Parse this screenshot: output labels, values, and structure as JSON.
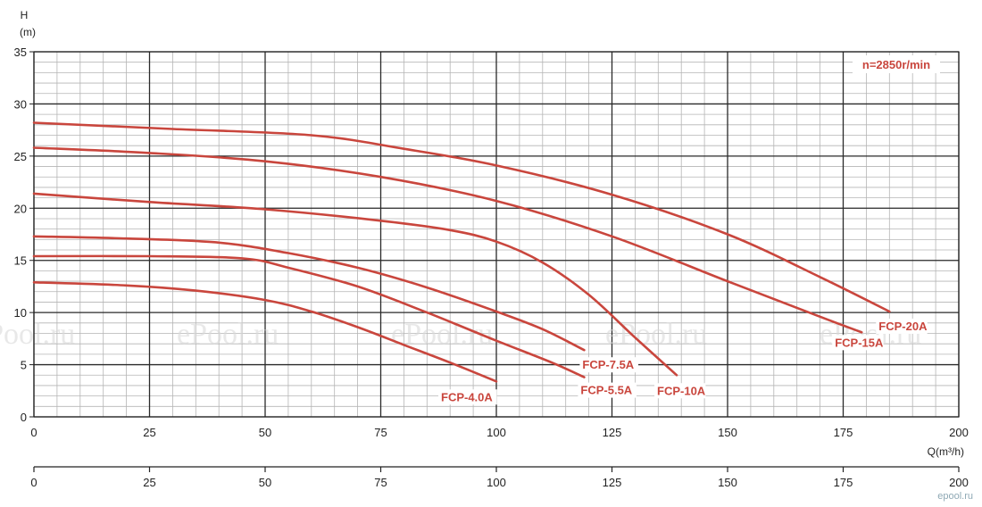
{
  "chart_data": {
    "type": "line",
    "ylabel_lines": [
      "H",
      "(m)"
    ],
    "xlabel": "Q(m³/h)",
    "annotation": "n=2850r/min",
    "xlim": [
      0,
      200
    ],
    "ylim": [
      0,
      35
    ],
    "x_ticks": [
      0,
      25,
      50,
      75,
      100,
      125,
      150,
      175,
      200
    ],
    "y_ticks": [
      0,
      5,
      10,
      15,
      20,
      25,
      30,
      35
    ],
    "grid": true,
    "line_color": "#c9463d",
    "series": [
      {
        "name": "FCP-4.0A",
        "points": [
          [
            0,
            12.9
          ],
          [
            20,
            12.6
          ],
          [
            35,
            12.1
          ],
          [
            50,
            11.2
          ],
          [
            60,
            10.1
          ],
          [
            70,
            8.6
          ],
          [
            80,
            6.9
          ],
          [
            90,
            5.2
          ],
          [
            100,
            3.4
          ]
        ]
      },
      {
        "name": "FCP-5.5A",
        "points": [
          [
            0,
            15.4
          ],
          [
            25,
            15.4
          ],
          [
            45,
            15.2
          ],
          [
            55,
            14.3
          ],
          [
            70,
            12.5
          ],
          [
            85,
            10.0
          ],
          [
            100,
            7.3
          ],
          [
            112,
            5.2
          ],
          [
            119,
            3.8
          ]
        ]
      },
      {
        "name": "FCP-7.5A",
        "points": [
          [
            0,
            17.3
          ],
          [
            20,
            17.1
          ],
          [
            40,
            16.7
          ],
          [
            55,
            15.7
          ],
          [
            70,
            14.3
          ],
          [
            85,
            12.4
          ],
          [
            100,
            10.1
          ],
          [
            110,
            8.4
          ],
          [
            119,
            6.4
          ]
        ]
      },
      {
        "name": "FCP-10A",
        "points": [
          [
            0,
            21.4
          ],
          [
            25,
            20.6
          ],
          [
            50,
            19.9
          ],
          [
            75,
            18.8
          ],
          [
            90,
            17.9
          ],
          [
            100,
            16.8
          ],
          [
            110,
            14.8
          ],
          [
            120,
            11.7
          ],
          [
            130,
            7.6
          ],
          [
            139,
            4.0
          ]
        ]
      },
      {
        "name": "FCP-15A",
        "points": [
          [
            0,
            25.8
          ],
          [
            25,
            25.3
          ],
          [
            50,
            24.5
          ],
          [
            75,
            23.0
          ],
          [
            100,
            20.7
          ],
          [
            125,
            17.3
          ],
          [
            150,
            13.0
          ],
          [
            170,
            9.6
          ],
          [
            179,
            8.1
          ]
        ]
      },
      {
        "name": "FCP-20A",
        "points": [
          [
            0,
            28.2
          ],
          [
            30,
            27.6
          ],
          [
            60,
            27.0
          ],
          [
            80,
            25.7
          ],
          [
            100,
            24.1
          ],
          [
            125,
            21.3
          ],
          [
            150,
            17.5
          ],
          [
            170,
            13.4
          ],
          [
            185,
            10.1
          ]
        ]
      }
    ],
    "lower_axis_ticks": [
      0,
      25,
      50,
      75,
      100,
      125,
      150,
      175,
      200
    ]
  },
  "watermark": "ePool.ru",
  "brand": "epool.ru"
}
